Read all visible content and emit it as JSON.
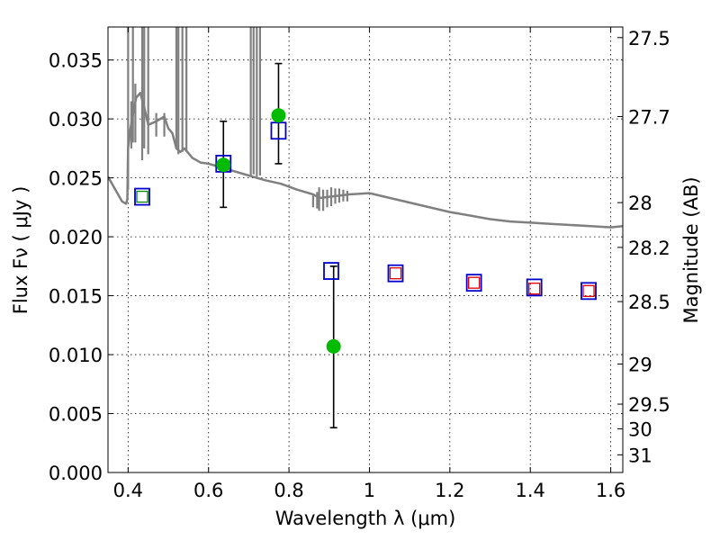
{
  "chart_data": {
    "type": "scatter",
    "xlabel": "Wavelength  λ (μm)",
    "ylabel": "Flux  Fν  ( μJy )",
    "ylabel_right": "Magnitude (AB)",
    "xlim": [
      0.35,
      1.63
    ],
    "ylim": [
      0.0,
      0.0378
    ],
    "x_ticks": [
      0.4,
      0.6,
      0.8,
      1.0,
      1.2,
      1.4,
      1.6
    ],
    "x_tick_labels": [
      "0.4",
      "0.6",
      "0.8",
      "1",
      "1.2",
      "1.4",
      "1.6"
    ],
    "y_ticks": [
      0.0,
      0.005,
      0.01,
      0.015,
      0.02,
      0.025,
      0.03,
      0.035
    ],
    "y_tick_labels": [
      "0.000",
      "0.005",
      "0.010",
      "0.015",
      "0.020",
      "0.025",
      "0.030",
      "0.035"
    ],
    "right_ticks": [
      {
        "flux": 0.0369,
        "label": "27.5"
      },
      {
        "flux": 0.0302,
        "label": "27.7"
      },
      {
        "flux": 0.0229,
        "label": "28"
      },
      {
        "flux": 0.0191,
        "label": "28.2"
      },
      {
        "flux": 0.0145,
        "label": "28.5"
      },
      {
        "flux": 0.0092,
        "label": "29"
      },
      {
        "flux": 0.0058,
        "label": "29.5"
      },
      {
        "flux": 0.0037,
        "label": "30"
      },
      {
        "flux": 0.0015,
        "label": "31"
      }
    ],
    "grid": true,
    "grid_style": "dotted",
    "colors": {
      "model": "#808080",
      "observed": "#00bb00",
      "model_phot": "#0000cc",
      "secondary_phot": "#dd0000",
      "secondary_phot_2": "#008800",
      "errorbar": "#000000"
    },
    "series": [
      {
        "kind": "line",
        "x": [
          0.35,
          0.37,
          0.385,
          0.395,
          0.398,
          0.4,
          0.405,
          0.41,
          0.42,
          0.43,
          0.44,
          0.45,
          0.47,
          0.49,
          0.5,
          0.51,
          0.52,
          0.53,
          0.54,
          0.56,
          0.58,
          0.6,
          0.62,
          0.65,
          0.7,
          0.74,
          0.78,
          0.82,
          0.86,
          0.87,
          0.88,
          0.9,
          0.95,
          1.0,
          1.05,
          1.1,
          1.15,
          1.2,
          1.25,
          1.3,
          1.35,
          1.4,
          1.45,
          1.5,
          1.55,
          1.6,
          1.63
        ],
        "y": [
          0.0251,
          0.0239,
          0.023,
          0.0228,
          0.0232,
          0.0275,
          0.029,
          0.03,
          0.0318,
          0.0322,
          0.031,
          0.0295,
          0.0298,
          0.0302,
          0.0292,
          0.0288,
          0.0275,
          0.0272,
          0.0275,
          0.0267,
          0.0263,
          0.0262,
          0.026,
          0.0257,
          0.0252,
          0.0248,
          0.0245,
          0.024,
          0.0236,
          0.0234,
          0.0233,
          0.0234,
          0.0236,
          0.0237,
          0.0233,
          0.0229,
          0.0225,
          0.0221,
          0.0218,
          0.0215,
          0.0213,
          0.0212,
          0.0211,
          0.021,
          0.0209,
          0.0208,
          0.0209
        ],
        "spikes": [
          {
            "x": 0.4,
            "ymin": 0.024,
            "ymax": 0.0378
          },
          {
            "x": 0.408,
            "ymin": 0.0275,
            "ymax": 0.0315
          },
          {
            "x": 0.412,
            "ymin": 0.028,
            "ymax": 0.0378
          },
          {
            "x": 0.418,
            "ymin": 0.028,
            "ymax": 0.033
          },
          {
            "x": 0.435,
            "ymin": 0.0265,
            "ymax": 0.0378
          },
          {
            "x": 0.44,
            "ymin": 0.0275,
            "ymax": 0.0378
          },
          {
            "x": 0.45,
            "ymin": 0.027,
            "ymax": 0.0378
          },
          {
            "x": 0.47,
            "ymin": 0.0285,
            "ymax": 0.0305
          },
          {
            "x": 0.49,
            "ymin": 0.0285,
            "ymax": 0.0305
          },
          {
            "x": 0.52,
            "ymin": 0.0275,
            "ymax": 0.0378
          },
          {
            "x": 0.525,
            "ymin": 0.027,
            "ymax": 0.0378
          },
          {
            "x": 0.535,
            "ymin": 0.0272,
            "ymax": 0.0378
          },
          {
            "x": 0.545,
            "ymin": 0.0273,
            "ymax": 0.0378
          },
          {
            "x": 0.705,
            "ymin": 0.0251,
            "ymax": 0.0378
          },
          {
            "x": 0.712,
            "ymin": 0.0253,
            "ymax": 0.0378
          },
          {
            "x": 0.72,
            "ymin": 0.0251,
            "ymax": 0.0378
          },
          {
            "x": 0.728,
            "ymin": 0.0252,
            "ymax": 0.0378
          },
          {
            "x": 0.86,
            "ymin": 0.0225,
            "ymax": 0.0235
          },
          {
            "x": 0.87,
            "ymin": 0.0224,
            "ymax": 0.0238
          },
          {
            "x": 0.875,
            "ymin": 0.0222,
            "ymax": 0.0242
          },
          {
            "x": 0.885,
            "ymin": 0.0222,
            "ymax": 0.024
          },
          {
            "x": 0.895,
            "ymin": 0.0225,
            "ymax": 0.024
          },
          {
            "x": 0.905,
            "ymin": 0.0226,
            "ymax": 0.0242
          },
          {
            "x": 0.915,
            "ymin": 0.0228,
            "ymax": 0.0241
          },
          {
            "x": 0.925,
            "ymin": 0.0229,
            "ymax": 0.0241
          },
          {
            "x": 0.935,
            "ymin": 0.023,
            "ymax": 0.024
          },
          {
            "x": 0.945,
            "ymin": 0.023,
            "ymax": 0.0239
          }
        ]
      },
      {
        "kind": "observed_points",
        "x": [
          0.637,
          0.774,
          0.911
        ],
        "y": [
          0.0261,
          0.0303,
          0.0107
        ],
        "yerr_low": [
          0.0225,
          0.0262,
          0.0038
        ],
        "yerr_high": [
          0.0298,
          0.0347,
          0.0175
        ]
      },
      {
        "kind": "model_photometry",
        "x": [
          0.435,
          0.637,
          0.774,
          0.905,
          1.065,
          1.26,
          1.41,
          1.545
        ],
        "y": [
          0.0234,
          0.0262,
          0.029,
          0.0171,
          0.0169,
          0.0161,
          0.0157,
          0.0154
        ]
      },
      {
        "kind": "secondary_photometry",
        "x": [
          0.435,
          1.065,
          1.26,
          1.41,
          1.545
        ],
        "y": [
          0.0234,
          0.0169,
          0.0161,
          0.0156,
          0.0154
        ],
        "color_key": [
          "secondary_phot_2",
          "secondary_phot",
          "secondary_phot",
          "secondary_phot",
          "secondary_phot"
        ]
      }
    ]
  }
}
